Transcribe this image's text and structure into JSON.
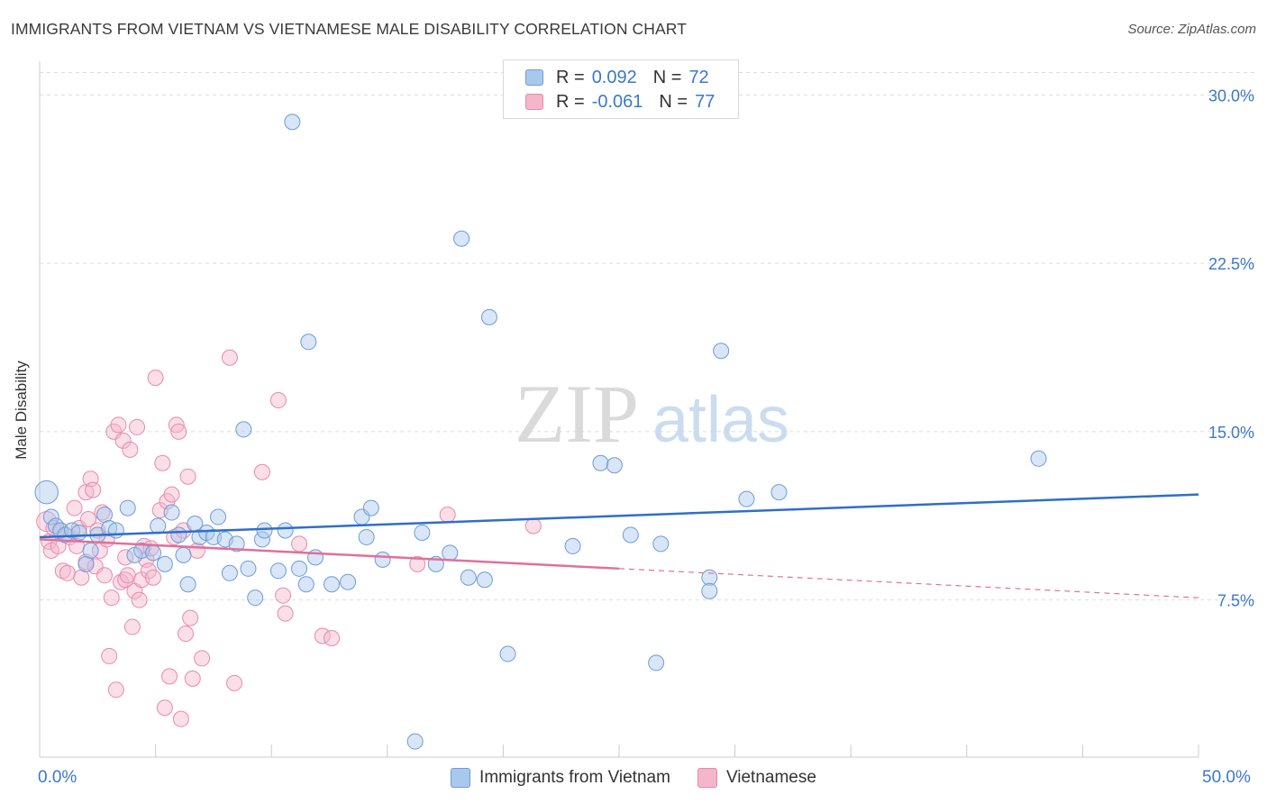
{
  "title": "IMMIGRANTS FROM VIETNAM VS VIETNAMESE MALE DISABILITY CORRELATION CHART",
  "source": "Source: ZipAtlas.com",
  "watermark": {
    "zip": "ZIP",
    "atlas": "atlas"
  },
  "legend": {
    "rows": [
      {
        "r_label": "R =",
        "r_value": "0.092",
        "n_label": "N =",
        "n_value": "72"
      },
      {
        "r_label": "R =",
        "r_value": "-0.061",
        "n_label": "N =",
        "n_value": "77"
      }
    ]
  },
  "bottom_legend": [
    "Immigrants from Vietnam",
    "Vietnamese"
  ],
  "x_tick_labels": {
    "min": "0.0%",
    "max": "50.0%"
  },
  "colors": {
    "blue_fill": "#a9c8ee",
    "blue_stroke": "#6e9bd8",
    "blue_line": "#2f6fc8",
    "pink_fill": "#f5b5cb",
    "pink_stroke": "#e88aaa",
    "pink_line": "#e0709a",
    "axis_text": "#3b78c9",
    "grid": "#dddddd"
  },
  "chart_data": {
    "type": "scatter",
    "title": "IMMIGRANTS FROM VIETNAM VS VIETNAMESE MALE DISABILITY CORRELATION CHART",
    "ylabel": "Male Disability",
    "xlim": [
      0,
      50
    ],
    "ylim": [
      0.5,
      31.5
    ],
    "y_ticks": [
      {
        "v": 7.5,
        "label": "7.5%"
      },
      {
        "v": 15.0,
        "label": "15.0%"
      },
      {
        "v": 22.5,
        "label": "22.5%"
      },
      {
        "v": 30.0,
        "label": "30.0%"
      }
    ],
    "grid": true,
    "series": [
      {
        "name": "Immigrants from Vietnam",
        "color": "#a9c8ee",
        "trend": {
          "x0": 0,
          "y0": 10.3,
          "x1": 50,
          "y1": 12.2,
          "dashed_from": null
        },
        "points": [
          [
            0.3,
            12.3,
            1.5
          ],
          [
            0.5,
            11.2,
            1
          ],
          [
            0.7,
            10.8,
            1
          ],
          [
            0.9,
            10.6,
            1
          ],
          [
            1.1,
            10.4,
            1
          ],
          [
            1.4,
            10.6,
            1
          ],
          [
            1.7,
            10.5,
            1
          ],
          [
            2.0,
            9.1,
            1
          ],
          [
            2.2,
            9.7,
            1
          ],
          [
            2.5,
            10.4,
            1
          ],
          [
            2.8,
            11.3,
            1
          ],
          [
            3.0,
            10.7,
            1
          ],
          [
            3.3,
            10.6,
            1
          ],
          [
            3.8,
            11.6,
            1
          ],
          [
            4.1,
            9.5,
            1
          ],
          [
            4.4,
            9.7,
            1
          ],
          [
            4.9,
            9.6,
            1
          ],
          [
            5.1,
            10.8,
            1
          ],
          [
            5.4,
            9.1,
            1
          ],
          [
            5.7,
            11.4,
            1
          ],
          [
            6.0,
            10.4,
            1
          ],
          [
            6.2,
            9.5,
            1
          ],
          [
            6.4,
            8.2,
            1
          ],
          [
            6.7,
            10.9,
            1
          ],
          [
            6.9,
            10.3,
            1
          ],
          [
            7.2,
            10.5,
            1
          ],
          [
            7.5,
            10.3,
            1
          ],
          [
            7.7,
            11.2,
            1
          ],
          [
            8.0,
            10.2,
            1
          ],
          [
            8.2,
            8.7,
            1
          ],
          [
            8.5,
            10.0,
            1
          ],
          [
            8.8,
            15.1,
            1
          ],
          [
            9.0,
            8.9,
            1
          ],
          [
            9.3,
            7.6,
            1
          ],
          [
            9.6,
            10.2,
            1
          ],
          [
            9.7,
            10.6,
            1
          ],
          [
            10.3,
            8.8,
            1
          ],
          [
            10.6,
            10.6,
            1
          ],
          [
            10.9,
            28.8,
            1
          ],
          [
            11.2,
            8.9,
            1
          ],
          [
            11.5,
            8.2,
            1
          ],
          [
            11.6,
            19.0,
            1
          ],
          [
            11.9,
            9.4,
            1
          ],
          [
            12.6,
            8.2,
            1
          ],
          [
            13.3,
            8.3,
            1
          ],
          [
            13.9,
            11.2,
            1
          ],
          [
            14.1,
            10.3,
            1
          ],
          [
            14.3,
            11.6,
            1
          ],
          [
            14.8,
            9.3,
            1
          ],
          [
            16.2,
            1.2,
            1
          ],
          [
            16.5,
            10.5,
            1
          ],
          [
            17.1,
            9.1,
            1
          ],
          [
            17.7,
            9.6,
            1
          ],
          [
            18.2,
            23.6,
            1
          ],
          [
            18.5,
            8.5,
            1
          ],
          [
            19.2,
            8.4,
            1
          ],
          [
            19.4,
            20.1,
            1
          ],
          [
            20.2,
            5.1,
            1
          ],
          [
            23.0,
            9.9,
            1
          ],
          [
            24.2,
            13.6,
            1
          ],
          [
            24.8,
            13.5,
            1
          ],
          [
            25.5,
            10.4,
            1
          ],
          [
            26.6,
            4.7,
            1
          ],
          [
            26.8,
            10.0,
            1
          ],
          [
            28.9,
            8.5,
            1
          ],
          [
            28.9,
            7.9,
            1
          ],
          [
            29.4,
            18.6,
            1
          ],
          [
            30.5,
            12.0,
            1
          ],
          [
            31.9,
            12.3,
            1
          ],
          [
            43.1,
            13.8,
            1
          ]
        ]
      },
      {
        "name": "Vietnamese",
        "color": "#f5b5cb",
        "trend": {
          "x0": 0,
          "y0": 10.2,
          "x1": 50,
          "y1": 7.6,
          "dashed_from": 25
        },
        "points": [
          [
            0.3,
            11.0,
            1.3
          ],
          [
            0.4,
            10.1,
            1
          ],
          [
            0.5,
            9.7,
            1
          ],
          [
            0.6,
            10.7,
            1
          ],
          [
            0.8,
            9.9,
            1
          ],
          [
            0.9,
            10.6,
            1
          ],
          [
            1.0,
            8.8,
            1
          ],
          [
            1.2,
            8.7,
            1
          ],
          [
            1.3,
            10.3,
            1
          ],
          [
            1.5,
            11.6,
            1
          ],
          [
            1.6,
            9.9,
            1
          ],
          [
            1.7,
            10.7,
            1
          ],
          [
            1.8,
            8.5,
            1
          ],
          [
            2.0,
            12.3,
            1
          ],
          [
            2.0,
            9.2,
            1
          ],
          [
            2.1,
            11.1,
            1
          ],
          [
            2.2,
            12.9,
            1
          ],
          [
            2.3,
            12.4,
            1
          ],
          [
            2.4,
            9.0,
            1
          ],
          [
            2.5,
            10.6,
            1
          ],
          [
            2.6,
            9.7,
            1
          ],
          [
            2.7,
            11.4,
            1
          ],
          [
            2.8,
            8.6,
            1
          ],
          [
            2.9,
            10.2,
            1
          ],
          [
            3.0,
            5.0,
            1
          ],
          [
            3.1,
            7.6,
            1
          ],
          [
            3.2,
            15.0,
            1
          ],
          [
            3.3,
            3.5,
            1
          ],
          [
            3.4,
            15.3,
            1
          ],
          [
            3.5,
            8.3,
            1
          ],
          [
            3.6,
            14.6,
            1
          ],
          [
            3.7,
            9.4,
            1
          ],
          [
            3.7,
            8.4,
            1
          ],
          [
            3.8,
            8.6,
            1
          ],
          [
            3.9,
            14.2,
            1
          ],
          [
            4.0,
            6.3,
            1
          ],
          [
            4.1,
            7.9,
            1
          ],
          [
            4.2,
            15.2,
            1
          ],
          [
            4.3,
            7.5,
            1
          ],
          [
            4.4,
            8.4,
            1
          ],
          [
            4.5,
            9.9,
            1
          ],
          [
            4.6,
            9.3,
            1
          ],
          [
            4.7,
            8.8,
            1
          ],
          [
            4.8,
            9.8,
            1
          ],
          [
            4.9,
            8.5,
            1
          ],
          [
            5.0,
            17.4,
            1
          ],
          [
            5.2,
            11.5,
            1
          ],
          [
            5.3,
            13.6,
            1
          ],
          [
            5.4,
            2.7,
            1
          ],
          [
            5.5,
            11.9,
            1
          ],
          [
            5.6,
            4.1,
            1
          ],
          [
            5.7,
            12.2,
            1
          ],
          [
            5.8,
            10.3,
            1
          ],
          [
            5.9,
            15.3,
            1
          ],
          [
            6.0,
            15.0,
            1
          ],
          [
            6.1,
            2.2,
            1
          ],
          [
            6.2,
            10.6,
            1
          ],
          [
            6.3,
            6.0,
            1
          ],
          [
            6.4,
            13.0,
            1
          ],
          [
            6.5,
            6.7,
            1
          ],
          [
            6.6,
            4.0,
            1
          ],
          [
            6.8,
            9.7,
            1
          ],
          [
            7.0,
            4.9,
            1
          ],
          [
            8.2,
            18.3,
            1
          ],
          [
            8.4,
            3.8,
            1
          ],
          [
            9.6,
            13.2,
            1
          ],
          [
            10.3,
            16.4,
            1
          ],
          [
            10.5,
            7.7,
            1
          ],
          [
            10.6,
            6.9,
            1
          ],
          [
            11.2,
            10.0,
            1
          ],
          [
            12.2,
            5.9,
            1
          ],
          [
            12.6,
            5.8,
            1
          ],
          [
            16.3,
            9.1,
            1
          ],
          [
            17.6,
            11.3,
            1
          ],
          [
            21.3,
            10.8,
            1
          ]
        ]
      }
    ]
  }
}
